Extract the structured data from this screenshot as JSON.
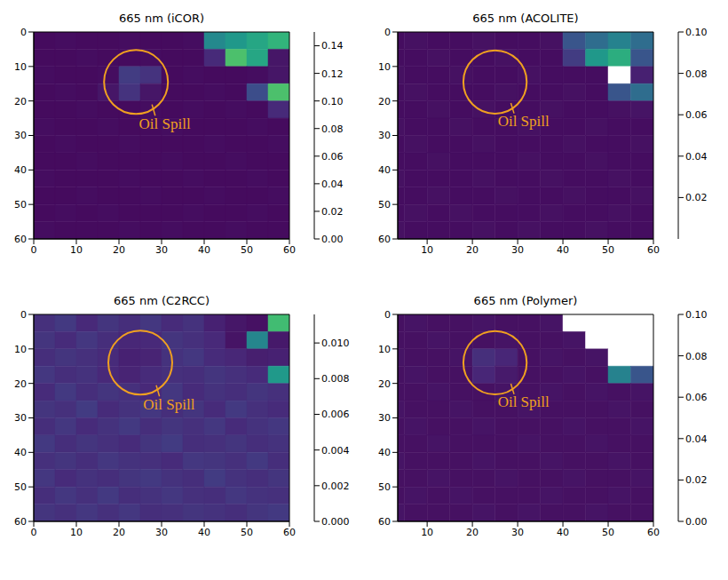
{
  "chart_data": [
    {
      "type": "heatmap",
      "title": "665 nm (iCOR)",
      "xlim": [
        0,
        60
      ],
      "xticks": [
        0,
        10,
        20,
        30,
        40,
        50,
        60
      ],
      "ylim": [
        0,
        60
      ],
      "yticks": [
        0,
        10,
        20,
        30,
        40,
        50,
        60
      ],
      "x_edges": [
        0,
        5,
        10,
        15,
        20,
        25,
        30,
        35,
        40,
        45,
        50,
        55,
        60
      ],
      "y_edges": [
        0,
        5,
        10,
        15,
        20,
        25,
        30,
        35,
        40,
        45,
        50,
        55,
        60
      ],
      "cells": [
        [
          0.005,
          0.006,
          0.005,
          0.005,
          0.006,
          0.005,
          0.005,
          0.006,
          0.08,
          0.09,
          0.1,
          0.11
        ],
        [
          0.005,
          0.005,
          0.006,
          0.005,
          0.005,
          0.006,
          0.005,
          0.005,
          0.02,
          0.12,
          0.1,
          0.01
        ],
        [
          0.006,
          0.005,
          0.005,
          0.006,
          0.03,
          0.025,
          0.005,
          0.006,
          0.005,
          0.005,
          0.006,
          0.01
        ],
        [
          0.005,
          0.006,
          0.005,
          0.01,
          0.025,
          0.01,
          0.005,
          0.005,
          0.006,
          0.005,
          0.04,
          0.12
        ],
        [
          0.005,
          0.005,
          0.006,
          0.005,
          0.005,
          0.006,
          0.005,
          0.006,
          0.005,
          0.006,
          0.005,
          0.02
        ],
        [
          0.006,
          0.005,
          0.005,
          0.006,
          0.005,
          0.005,
          0.006,
          0.005,
          0.005,
          0.005,
          0.006,
          0.005
        ],
        [
          0.005,
          0.006,
          0.005,
          0.005,
          0.006,
          0.005,
          0.005,
          0.005,
          0.006,
          0.005,
          0.005,
          0.006
        ],
        [
          0.005,
          0.005,
          0.006,
          0.005,
          0.005,
          0.005,
          0.006,
          0.005,
          0.005,
          0.006,
          0.005,
          0.005
        ],
        [
          0.006,
          0.005,
          0.005,
          0.005,
          0.006,
          0.005,
          0.005,
          0.006,
          0.005,
          0.005,
          0.006,
          0.005
        ],
        [
          0.005,
          0.005,
          0.006,
          0.005,
          0.005,
          0.006,
          0.005,
          0.005,
          0.006,
          0.005,
          0.005,
          0.006
        ],
        [
          0.005,
          0.006,
          0.005,
          0.006,
          0.005,
          0.005,
          0.005,
          0.006,
          0.005,
          0.005,
          0.006,
          0.005
        ],
        [
          0.006,
          0.005,
          0.005,
          0.005,
          0.006,
          0.005,
          0.006,
          0.005,
          0.005,
          0.006,
          0.005,
          0.005
        ]
      ],
      "colorbar": {
        "range": [
          0,
          0.15
        ],
        "ticks": [
          {
            "value": 0,
            "label": "0.00"
          },
          {
            "value": 0.02,
            "label": "0.02"
          },
          {
            "value": 0.04,
            "label": "0.04"
          },
          {
            "value": 0.06,
            "label": "0.06"
          },
          {
            "value": 0.08,
            "label": "0.08"
          },
          {
            "value": 0.1,
            "label": "0.10"
          },
          {
            "value": 0.12,
            "label": "0.12"
          },
          {
            "value": 0.14,
            "label": "0.14"
          }
        ]
      },
      "annotations": [
        {
          "text": "Oil Spill",
          "x": 24,
          "y": 14.5,
          "radius": 7.5,
          "color": "#f0a020"
        }
      ]
    },
    {
      "type": "heatmap",
      "title": "665 nm (ACOLITE)",
      "xlim": [
        3.5,
        60
      ],
      "xticks": [
        10,
        20,
        30,
        40,
        50,
        60
      ],
      "ylim": [
        0,
        60
      ],
      "yticks": [
        0,
        10,
        20,
        30,
        40,
        50,
        60
      ],
      "x_edges": [
        0,
        5,
        10,
        15,
        20,
        25,
        30,
        35,
        40,
        45,
        50,
        55,
        60
      ],
      "y_edges": [
        0,
        5,
        10,
        15,
        20,
        25,
        30,
        35,
        40,
        45,
        50,
        55,
        60
      ],
      "cells": [
        [
          0.004,
          0.005,
          0.004,
          0.004,
          0.005,
          0.004,
          0.004,
          0.005,
          0.03,
          0.04,
          0.05,
          0.04
        ],
        [
          0.004,
          0.004,
          0.005,
          0.004,
          0.004,
          0.005,
          0.004,
          0.004,
          0.02,
          0.06,
          0.07,
          0.03
        ],
        [
          0.005,
          0.004,
          0.004,
          0.005,
          0.004,
          0.004,
          0.005,
          0.004,
          0.004,
          0.004,
          null,
          0.01
        ],
        [
          0.004,
          0.005,
          0.004,
          0.004,
          0.004,
          0.005,
          0.004,
          0.004,
          0.005,
          0.004,
          0.03,
          0.04
        ],
        [
          0.004,
          0.004,
          0.005,
          0.004,
          0.005,
          0.004,
          0.004,
          0.005,
          0.004,
          0.004,
          0.005,
          0.006
        ],
        [
          0.005,
          0.004,
          0.004,
          0.005,
          0.004,
          0.004,
          0.005,
          0.004,
          0.004,
          0.005,
          0.004,
          0.004
        ],
        [
          0.004,
          0.005,
          0.004,
          0.004,
          0.005,
          0.004,
          0.004,
          0.004,
          0.005,
          0.004,
          0.004,
          0.005
        ],
        [
          0.004,
          0.004,
          0.005,
          0.004,
          0.004,
          0.004,
          0.005,
          0.004,
          0.004,
          0.005,
          0.004,
          0.004
        ],
        [
          0.005,
          0.004,
          0.004,
          0.004,
          0.005,
          0.004,
          0.004,
          0.005,
          0.004,
          0.004,
          0.005,
          0.004
        ],
        [
          0.004,
          0.004,
          0.005,
          0.004,
          0.004,
          0.005,
          0.004,
          0.004,
          0.005,
          0.004,
          0.004,
          0.005
        ],
        [
          0.004,
          0.005,
          0.004,
          0.005,
          0.004,
          0.004,
          0.004,
          0.005,
          0.004,
          0.004,
          0.005,
          0.004
        ],
        [
          0.005,
          0.004,
          0.004,
          0.004,
          0.005,
          0.004,
          0.005,
          0.004,
          0.004,
          0.005,
          0.004,
          0.004
        ]
      ],
      "colorbar": {
        "range": [
          0,
          0.1
        ],
        "ticks": [
          {
            "value": 0.02,
            "label": "0.02"
          },
          {
            "value": 0.04,
            "label": "0.04"
          },
          {
            "value": 0.06,
            "label": "0.06"
          },
          {
            "value": 0.08,
            "label": "0.08"
          },
          {
            "value": 0.1,
            "label": "0.10"
          }
        ]
      },
      "annotations": [
        {
          "text": "Oil Spill",
          "x": 25,
          "y": 14.5,
          "radius": 7,
          "color": "#f0a020"
        }
      ]
    },
    {
      "type": "heatmap",
      "title": "665 nm (C2RCC)",
      "xlim": [
        0,
        60
      ],
      "xticks": [
        0,
        10,
        20,
        30,
        40,
        50,
        60
      ],
      "ylim": [
        0,
        60
      ],
      "yticks": [
        0,
        10,
        20,
        30,
        40,
        50,
        60
      ],
      "x_edges": [
        0,
        5,
        10,
        15,
        20,
        25,
        30,
        35,
        40,
        45,
        50,
        55,
        60
      ],
      "y_edges": [
        0,
        5,
        10,
        15,
        20,
        25,
        30,
        35,
        40,
        45,
        50,
        55,
        60
      ],
      "cells": [
        [
          0.0018,
          0.0022,
          0.0015,
          0.002,
          0.0017,
          0.0021,
          0.0016,
          0.0019,
          0.0012,
          0.0008,
          0.0006,
          0.009
        ],
        [
          0.002,
          0.0016,
          0.0021,
          0.0017,
          0.0014,
          0.0015,
          0.002,
          0.0018,
          0.0015,
          0.0007,
          0.006,
          0.0009
        ],
        [
          0.0017,
          0.002,
          0.0018,
          0.0016,
          0.0012,
          0.0013,
          0.0019,
          0.0021,
          0.0016,
          0.0014,
          0.0011,
          0.0012
        ],
        [
          0.0021,
          0.0017,
          0.0019,
          0.0015,
          0.0013,
          0.0016,
          0.0018,
          0.0017,
          0.002,
          0.0018,
          0.0016,
          0.007
        ],
        [
          0.0016,
          0.0022,
          0.0017,
          0.002,
          0.0018,
          0.0015,
          0.0021,
          0.0016,
          0.0019,
          0.0017,
          0.002,
          0.0018
        ],
        [
          0.002,
          0.0018,
          0.0023,
          0.0016,
          0.0019,
          0.0021,
          0.0017,
          0.002,
          0.0016,
          0.0022,
          0.0018,
          0.0016
        ],
        [
          0.0017,
          0.0021,
          0.0016,
          0.0019,
          0.0022,
          0.0017,
          0.002,
          0.0018,
          0.0021,
          0.0016,
          0.0019,
          0.0021
        ],
        [
          0.0022,
          0.0017,
          0.002,
          0.0018,
          0.0016,
          0.002,
          0.0023,
          0.0017,
          0.0018,
          0.002,
          0.0017,
          0.0019
        ],
        [
          0.0018,
          0.002,
          0.0017,
          0.0021,
          0.0019,
          0.0018,
          0.0016,
          0.0021,
          0.002,
          0.0018,
          0.0022,
          0.0017
        ],
        [
          0.0021,
          0.0016,
          0.0019,
          0.0017,
          0.002,
          0.0022,
          0.0019,
          0.0017,
          0.0023,
          0.0019,
          0.0017,
          0.002
        ],
        [
          0.0017,
          0.0021,
          0.0018,
          0.0022,
          0.0017,
          0.0019,
          0.0021,
          0.0018,
          0.0017,
          0.0021,
          0.0019,
          0.0018
        ],
        [
          0.002,
          0.0018,
          0.0021,
          0.0018,
          0.0021,
          0.0017,
          0.0018,
          0.002,
          0.0019,
          0.0017,
          0.002,
          0.0022
        ]
      ],
      "colorbar": {
        "range": [
          0,
          0.0116
        ],
        "ticks": [
          {
            "value": 0,
            "label": "0.000"
          },
          {
            "value": 0.002,
            "label": "0.002"
          },
          {
            "value": 0.004,
            "label": "0.004"
          },
          {
            "value": 0.006,
            "label": "0.006"
          },
          {
            "value": 0.008,
            "label": "0.008"
          },
          {
            "value": 0.01,
            "label": "0.010"
          }
        ]
      },
      "annotations": [
        {
          "text": "Oil Spill",
          "x": 25,
          "y": 14,
          "radius": 7.5,
          "color": "#f0a020"
        }
      ]
    },
    {
      "type": "heatmap",
      "title": "665 nm (Polymer)",
      "xlim": [
        3.5,
        60
      ],
      "xticks": [
        10,
        20,
        30,
        40,
        50,
        60
      ],
      "ylim": [
        0,
        60
      ],
      "yticks": [
        0,
        10,
        20,
        30,
        40,
        50,
        60
      ],
      "x_edges": [
        0,
        5,
        10,
        15,
        20,
        25,
        30,
        35,
        40,
        45,
        50,
        55,
        60
      ],
      "y_edges": [
        0,
        5,
        10,
        15,
        20,
        25,
        30,
        35,
        40,
        45,
        50,
        55,
        60
      ],
      "cells": [
        [
          0.005,
          0.006,
          0.005,
          0.005,
          0.006,
          0.005,
          0.005,
          0.006,
          null,
          null,
          null,
          null
        ],
        [
          0.005,
          0.005,
          0.006,
          0.005,
          0.005,
          0.006,
          0.005,
          0.005,
          0.006,
          null,
          null,
          null
        ],
        [
          0.006,
          0.005,
          0.005,
          0.006,
          0.015,
          0.012,
          0.005,
          0.006,
          0.005,
          0.006,
          null,
          null
        ],
        [
          0.005,
          0.006,
          0.005,
          0.005,
          0.012,
          0.008,
          0.005,
          0.005,
          0.006,
          0.005,
          0.05,
          0.03
        ],
        [
          0.005,
          0.005,
          0.006,
          0.005,
          0.005,
          0.006,
          0.005,
          0.006,
          0.005,
          0.006,
          0.005,
          0.006
        ],
        [
          0.006,
          0.005,
          0.005,
          0.006,
          0.005,
          0.005,
          0.006,
          0.005,
          0.005,
          0.005,
          0.006,
          0.005
        ],
        [
          0.005,
          0.006,
          0.005,
          0.005,
          0.006,
          0.005,
          0.005,
          0.005,
          0.006,
          0.005,
          0.005,
          0.006
        ],
        [
          0.005,
          0.005,
          0.006,
          0.005,
          0.005,
          0.005,
          0.006,
          0.005,
          0.005,
          0.006,
          0.005,
          0.005
        ],
        [
          0.006,
          0.005,
          0.005,
          0.005,
          0.006,
          0.005,
          0.005,
          0.006,
          0.005,
          0.005,
          0.006,
          0.005
        ],
        [
          0.005,
          0.005,
          0.006,
          0.005,
          0.005,
          0.006,
          0.005,
          0.005,
          0.006,
          0.005,
          0.005,
          0.006
        ],
        [
          0.005,
          0.006,
          0.005,
          0.006,
          0.005,
          0.005,
          0.005,
          0.006,
          0.005,
          0.005,
          0.006,
          0.005
        ],
        [
          0.006,
          0.005,
          0.005,
          0.005,
          0.006,
          0.005,
          0.006,
          0.005,
          0.005,
          0.006,
          0.005,
          0.005
        ]
      ],
      "colorbar": {
        "range": [
          0,
          0.1
        ],
        "ticks": [
          {
            "value": 0,
            "label": "0.00"
          },
          {
            "value": 0.02,
            "label": "0.02"
          },
          {
            "value": 0.04,
            "label": "0.04"
          },
          {
            "value": 0.06,
            "label": "0.06"
          },
          {
            "value": 0.08,
            "label": "0.08"
          },
          {
            "value": 0.1,
            "label": "0.10"
          }
        ]
      },
      "annotations": [
        {
          "text": "Oil Spill",
          "x": 25,
          "y": 14,
          "radius": 7,
          "color": "#f0a020"
        }
      ]
    }
  ]
}
